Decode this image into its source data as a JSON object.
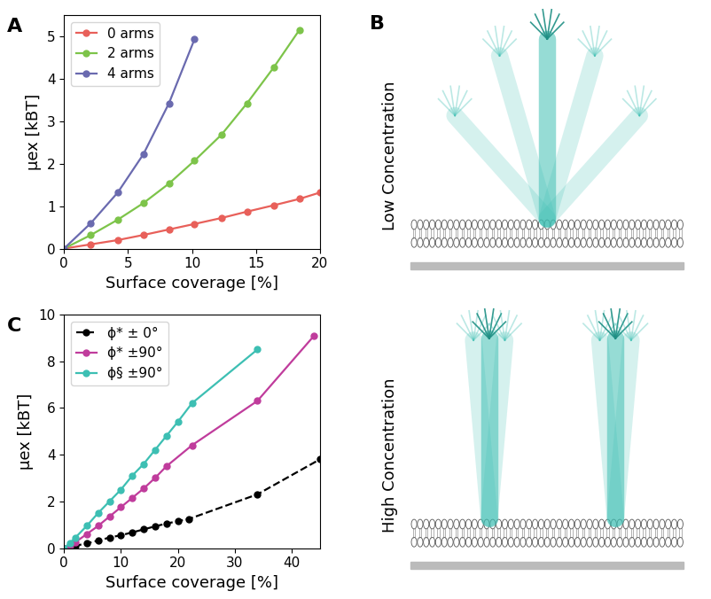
{
  "chart_data": [
    {
      "panel": "A",
      "type": "line",
      "x_label": "Surface coverage [%]",
      "y_label": "μex [kBT]",
      "xlim": [
        0,
        20
      ],
      "xticks": [
        0,
        5,
        10,
        15,
        20
      ],
      "ylim": [
        0,
        5.5
      ],
      "yticks": [
        0,
        1,
        2,
        3,
        4,
        5
      ],
      "legend": "upper left",
      "marker": "o",
      "series": [
        {
          "name": "0 arms",
          "color": "#e8605a",
          "line_style": "solid",
          "x": [
            0,
            2.1,
            4.2,
            6.2,
            8.2,
            10.2,
            12.3,
            14.3,
            16.4,
            18.4,
            20
          ],
          "values": [
            0,
            0.1,
            0.2,
            0.32,
            0.45,
            0.58,
            0.72,
            0.87,
            1.02,
            1.17,
            1.32
          ]
        },
        {
          "name": "2 arms",
          "color": "#7dc44a",
          "line_style": "solid",
          "x": [
            0,
            2.1,
            4.2,
            6.2,
            8.2,
            10.2,
            12.3,
            14.3,
            16.4,
            18.4
          ],
          "values": [
            0,
            0.32,
            0.68,
            1.07,
            1.53,
            2.07,
            2.68,
            3.42,
            4.27,
            5.15
          ]
        },
        {
          "name": "4 arms",
          "color": "#6a6aaf",
          "line_style": "solid",
          "x": [
            0,
            2.1,
            4.2,
            6.2,
            8.2,
            10.2
          ],
          "values": [
            0,
            0.6,
            1.32,
            2.22,
            3.42,
            4.93
          ]
        }
      ]
    },
    {
      "panel": "C",
      "type": "line",
      "x_label": "Surface coverage [%]",
      "y_label": "μex [kBT]",
      "xlim": [
        0,
        45
      ],
      "xticks": [
        0,
        10,
        20,
        30,
        40
      ],
      "ylim": [
        0,
        10
      ],
      "yticks": [
        0,
        2,
        4,
        6,
        8,
        10
      ],
      "legend": "upper left",
      "marker": "o",
      "series": [
        {
          "name": "ϕ* ± 0°",
          "color": "#000000",
          "line_style": "dashed",
          "x": [
            0,
            2,
            4,
            6,
            8,
            10,
            12,
            14,
            16,
            18,
            20,
            22,
            34,
            45
          ],
          "values": [
            0,
            0.1,
            0.2,
            0.32,
            0.45,
            0.55,
            0.67,
            0.8,
            0.93,
            1.05,
            1.15,
            1.25,
            2.3,
            3.8
          ]
        },
        {
          "name": "ϕ* ±90°",
          "color": "#c03c9c",
          "line_style": "solid",
          "x": [
            0,
            1,
            2,
            4,
            6,
            8,
            10,
            12,
            14,
            16,
            18,
            22.5,
            34,
            44
          ],
          "values": [
            0,
            0.1,
            0.25,
            0.6,
            0.95,
            1.35,
            1.75,
            2.15,
            2.55,
            3.0,
            3.5,
            4.4,
            6.3,
            9.1
          ]
        },
        {
          "name": "ϕ§ ±90°",
          "color": "#3dbfb3",
          "line_style": "solid",
          "x": [
            0,
            1,
            2,
            4,
            6,
            8,
            10,
            12,
            14,
            16,
            18,
            20,
            22.5,
            34
          ],
          "values": [
            0,
            0.2,
            0.45,
            0.95,
            1.5,
            2.0,
            2.5,
            3.1,
            3.6,
            4.2,
            4.8,
            5.4,
            6.2,
            8.5
          ]
        }
      ]
    }
  ],
  "diagram": {
    "panel": "B",
    "labels": [
      "Low Concentration",
      "High Concentration"
    ]
  }
}
